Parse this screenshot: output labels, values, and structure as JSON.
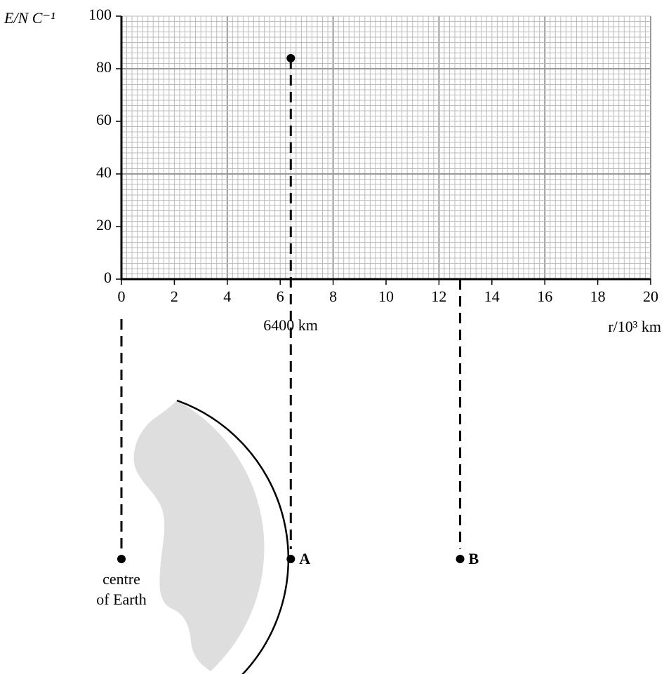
{
  "chart_data": {
    "type": "scatter",
    "ylabel": "E/N C⁻¹",
    "xlabel": "r/10³ km",
    "x": [
      6.4
    ],
    "values": [
      84
    ],
    "color": "#000000",
    "xlim": [
      0,
      20
    ],
    "ylim": [
      0,
      100
    ],
    "xticks": [
      0,
      2,
      4,
      6,
      8,
      10,
      12,
      14,
      16,
      18,
      20
    ],
    "yticks": [
      0,
      20,
      40,
      60,
      80,
      100
    ],
    "grid": {
      "minor": [
        0.2,
        2
      ],
      "major": [
        4,
        40
      ]
    },
    "annotation": "6400 km",
    "markers": [
      {
        "x": 0,
        "label": [
          "centre",
          "of Earth"
        ]
      },
      {
        "x": 6.4,
        "label": "A"
      },
      {
        "x": 12.8,
        "label": "B"
      }
    ]
  }
}
